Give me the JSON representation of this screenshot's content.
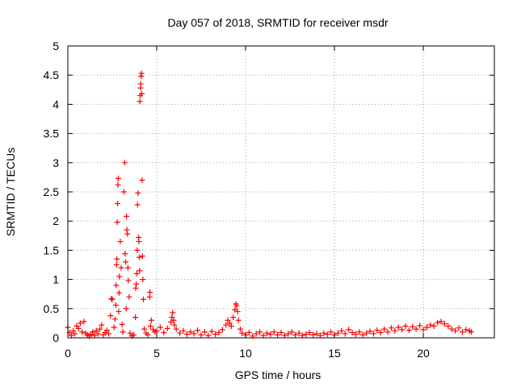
{
  "chart_data": {
    "type": "scatter",
    "title": "Day 057 of 2018, SRMTID for receiver msdr",
    "xlabel": "GPS time / hours",
    "ylabel": "SRMTID / TECUs",
    "xlim": [
      0,
      24
    ],
    "ylim": [
      0,
      5
    ],
    "x_ticks": [
      0,
      5,
      10,
      15,
      20
    ],
    "x_tick_labels": [
      "0",
      "5",
      "10",
      "15",
      "20"
    ],
    "y_ticks": [
      0,
      0.5,
      1,
      1.5,
      2,
      2.5,
      3,
      3.5,
      4,
      4.5,
      5
    ],
    "y_tick_labels": [
      "0",
      "0.5",
      "1",
      "1.5",
      "2",
      "2.5",
      "3",
      "3.5",
      "4",
      "4.5",
      "5"
    ],
    "grid": "dashed",
    "marker": "+",
    "series": [
      {
        "name": "SRMTID",
        "color": "#ff0000",
        "points": [
          [
            0.0,
            0.18
          ],
          [
            0.1,
            0.09
          ],
          [
            0.2,
            0.04
          ],
          [
            0.3,
            0.12
          ],
          [
            0.4,
            0.07
          ],
          [
            0.5,
            0.2
          ],
          [
            0.6,
            0.16
          ],
          [
            0.7,
            0.25
          ],
          [
            0.8,
            0.1
          ],
          [
            0.9,
            0.28
          ],
          [
            1.0,
            0.08
          ],
          [
            1.1,
            0.05
          ],
          [
            1.2,
            0.03
          ],
          [
            1.3,
            0.06
          ],
          [
            1.4,
            0.1
          ],
          [
            1.5,
            0.04
          ],
          [
            1.6,
            0.12
          ],
          [
            1.7,
            0.07
          ],
          [
            1.8,
            0.15
          ],
          [
            1.9,
            0.22
          ],
          [
            2.0,
            0.05
          ],
          [
            2.1,
            0.09
          ],
          [
            2.2,
            0.13
          ],
          [
            2.3,
            0.07
          ],
          [
            2.4,
            0.38
          ],
          [
            2.45,
            0.67
          ],
          [
            2.5,
            0.66
          ],
          [
            2.6,
            0.18
          ],
          [
            2.65,
            0.32
          ],
          [
            2.7,
            0.56
          ],
          [
            2.72,
            0.9
          ],
          [
            2.74,
            1.25
          ],
          [
            2.76,
            1.35
          ],
          [
            2.78,
            1.98
          ],
          [
            2.8,
            2.3
          ],
          [
            2.82,
            2.62
          ],
          [
            2.84,
            2.73
          ],
          [
            2.86,
            0.45
          ],
          [
            2.88,
            0.77
          ],
          [
            2.9,
            1.05
          ],
          [
            2.95,
            1.65
          ],
          [
            3.0,
            1.2
          ],
          [
            3.05,
            0.23
          ],
          [
            3.1,
            0.1
          ],
          [
            3.15,
            2.5
          ],
          [
            3.2,
            3.0
          ],
          [
            3.22,
            1.44
          ],
          [
            3.25,
            1.3
          ],
          [
            3.28,
            0.5
          ],
          [
            3.3,
            2.08
          ],
          [
            3.32,
            1.85
          ],
          [
            3.35,
            1.78
          ],
          [
            3.38,
            1.2
          ],
          [
            3.4,
            0.98
          ],
          [
            3.45,
            0.7
          ],
          [
            3.5,
            0.08
          ],
          [
            3.6,
            0.03
          ],
          [
            3.7,
            0.05
          ],
          [
            3.8,
            0.35
          ],
          [
            3.82,
            0.85
          ],
          [
            3.85,
            0.92
          ],
          [
            3.88,
            1.1
          ],
          [
            3.9,
            1.5
          ],
          [
            3.92,
            2.28
          ],
          [
            3.95,
            2.48
          ],
          [
            3.98,
            1.72
          ],
          [
            4.0,
            1.65
          ],
          [
            4.02,
            1.38
          ],
          [
            4.04,
            1.15
          ],
          [
            4.05,
            4.05
          ],
          [
            4.07,
            4.15
          ],
          [
            4.09,
            4.28
          ],
          [
            4.1,
            4.35
          ],
          [
            4.12,
            4.48
          ],
          [
            4.14,
            4.53
          ],
          [
            4.16,
            4.18
          ],
          [
            4.18,
            2.7
          ],
          [
            4.2,
            1.4
          ],
          [
            4.22,
            1.0
          ],
          [
            4.25,
            0.66
          ],
          [
            4.3,
            0.15
          ],
          [
            4.4,
            0.08
          ],
          [
            4.5,
            0.05
          ],
          [
            4.6,
            0.7
          ],
          [
            4.62,
            0.78
          ],
          [
            4.65,
            0.2
          ],
          [
            4.7,
            0.3
          ],
          [
            4.8,
            0.14
          ],
          [
            4.9,
            0.1
          ],
          [
            5.0,
            0.12
          ],
          [
            5.2,
            0.18
          ],
          [
            5.4,
            0.09
          ],
          [
            5.6,
            0.16
          ],
          [
            5.8,
            0.27
          ],
          [
            5.85,
            0.35
          ],
          [
            5.9,
            0.43
          ],
          [
            5.95,
            0.3
          ],
          [
            6.0,
            0.22
          ],
          [
            6.1,
            0.15
          ],
          [
            6.3,
            0.08
          ],
          [
            6.5,
            0.12
          ],
          [
            6.7,
            0.06
          ],
          [
            6.9,
            0.1
          ],
          [
            7.1,
            0.07
          ],
          [
            7.3,
            0.13
          ],
          [
            7.5,
            0.05
          ],
          [
            7.7,
            0.1
          ],
          [
            7.9,
            0.04
          ],
          [
            8.1,
            0.11
          ],
          [
            8.3,
            0.06
          ],
          [
            8.5,
            0.09
          ],
          [
            8.7,
            0.14
          ],
          [
            8.9,
            0.22
          ],
          [
            9.0,
            0.3
          ],
          [
            9.1,
            0.25
          ],
          [
            9.2,
            0.2
          ],
          [
            9.3,
            0.35
          ],
          [
            9.4,
            0.48
          ],
          [
            9.45,
            0.58
          ],
          [
            9.5,
            0.55
          ],
          [
            9.55,
            0.45
          ],
          [
            9.6,
            0.3
          ],
          [
            9.7,
            0.15
          ],
          [
            9.8,
            0.08
          ],
          [
            10.0,
            0.05
          ],
          [
            10.2,
            0.09
          ],
          [
            10.4,
            0.03
          ],
          [
            10.6,
            0.07
          ],
          [
            10.8,
            0.1
          ],
          [
            11.0,
            0.04
          ],
          [
            11.2,
            0.08
          ],
          [
            11.4,
            0.06
          ],
          [
            11.6,
            0.1
          ],
          [
            11.8,
            0.05
          ],
          [
            12.0,
            0.09
          ],
          [
            12.2,
            0.04
          ],
          [
            12.4,
            0.07
          ],
          [
            12.6,
            0.1
          ],
          [
            12.8,
            0.05
          ],
          [
            13.0,
            0.08
          ],
          [
            13.2,
            0.04
          ],
          [
            13.4,
            0.06
          ],
          [
            13.6,
            0.09
          ],
          [
            13.8,
            0.05
          ],
          [
            14.0,
            0.07
          ],
          [
            14.2,
            0.04
          ],
          [
            14.4,
            0.08
          ],
          [
            14.6,
            0.06
          ],
          [
            14.8,
            0.1
          ],
          [
            15.0,
            0.05
          ],
          [
            15.2,
            0.08
          ],
          [
            15.4,
            0.12
          ],
          [
            15.6,
            0.07
          ],
          [
            15.8,
            0.14
          ],
          [
            16.0,
            0.09
          ],
          [
            16.2,
            0.06
          ],
          [
            16.4,
            0.1
          ],
          [
            16.6,
            0.05
          ],
          [
            16.8,
            0.08
          ],
          [
            17.0,
            0.11
          ],
          [
            17.2,
            0.07
          ],
          [
            17.4,
            0.13
          ],
          [
            17.6,
            0.09
          ],
          [
            17.8,
            0.15
          ],
          [
            18.0,
            0.1
          ],
          [
            18.2,
            0.17
          ],
          [
            18.4,
            0.12
          ],
          [
            18.6,
            0.18
          ],
          [
            18.8,
            0.14
          ],
          [
            19.0,
            0.2
          ],
          [
            19.2,
            0.13
          ],
          [
            19.4,
            0.19
          ],
          [
            19.6,
            0.15
          ],
          [
            19.8,
            0.21
          ],
          [
            20.0,
            0.14
          ],
          [
            20.2,
            0.18
          ],
          [
            20.4,
            0.22
          ],
          [
            20.6,
            0.2
          ],
          [
            20.8,
            0.26
          ],
          [
            21.0,
            0.28
          ],
          [
            21.2,
            0.24
          ],
          [
            21.4,
            0.2
          ],
          [
            21.6,
            0.15
          ],
          [
            21.8,
            0.12
          ],
          [
            22.0,
            0.17
          ],
          [
            22.2,
            0.1
          ],
          [
            22.4,
            0.14
          ],
          [
            22.6,
            0.12
          ],
          [
            22.7,
            0.1
          ]
        ]
      }
    ]
  }
}
